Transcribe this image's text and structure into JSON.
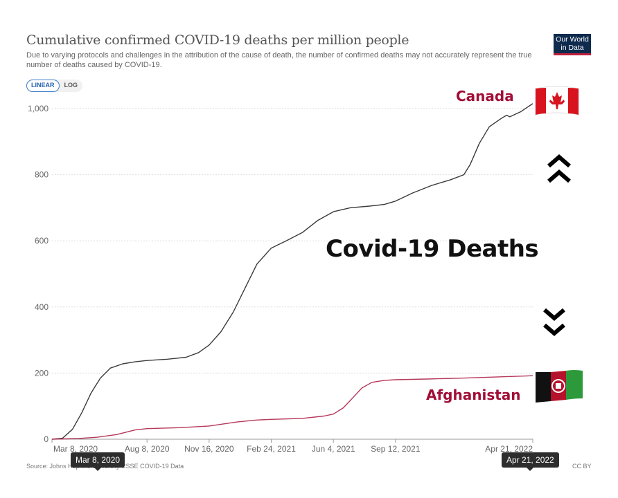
{
  "header": {
    "title": "Cumulative confirmed COVID-19 deaths per million people",
    "subtitle": "Due to varying protocols and challenges in the attribution of the cause of death, the number of confirmed deaths may not accurately represent the true number of deaths caused by COVID-19.",
    "logo_line1": "Our World",
    "logo_line2": "in Data",
    "scale_linear": "LINEAR",
    "scale_log": "LOG",
    "scale_selected": "LINEAR"
  },
  "footer": {
    "source": "Source: Johns Hopkins University CSSE COVID-19 Data",
    "license": "CC BY",
    "start_tooltip": "Mar 8, 2020",
    "end_tooltip": "Apr 21, 2022"
  },
  "overlay": {
    "headline": "Covid-19 Deaths",
    "label_canada": "Canada",
    "label_afghanistan": "Afghanistan",
    "label_color": "#a10e36",
    "icons": [
      "canada-flag-icon",
      "chevron-double-up-icon",
      "chevron-double-down-icon",
      "afghanistan-flag-icon"
    ]
  },
  "chart_data": {
    "type": "line",
    "title": "Cumulative confirmed COVID-19 deaths per million people",
    "xlim": [
      "2020-03-08",
      "2022-04-21"
    ],
    "ylim": [
      0,
      1000
    ],
    "x_ticks": [
      "Mar 8, 2020",
      "Aug 8, 2020",
      "Nov 16, 2020",
      "Feb 24, 2021",
      "Jun 4, 2021",
      "Sep 12, 2021",
      "Apr 21, 2022"
    ],
    "x_tick_dates": [
      "2020-03-08",
      "2020-08-08",
      "2020-11-16",
      "2021-02-24",
      "2021-06-04",
      "2021-09-12",
      "2022-04-21"
    ],
    "y_ticks": [
      0,
      200,
      400,
      600,
      800,
      1000
    ],
    "y_tick_labels": [
      "0",
      "200",
      "400",
      "600",
      "800",
      "1,000"
    ],
    "grid": "horizontal dotted",
    "series": [
      {
        "name": "Canada",
        "color": "#3a3a3a",
        "points": [
          [
            "2020-03-08",
            0
          ],
          [
            "2020-03-25",
            3
          ],
          [
            "2020-04-10",
            30
          ],
          [
            "2020-04-25",
            80
          ],
          [
            "2020-05-10",
            140
          ],
          [
            "2020-05-25",
            185
          ],
          [
            "2020-06-10",
            215
          ],
          [
            "2020-06-30",
            228
          ],
          [
            "2020-07-20",
            234
          ],
          [
            "2020-08-08",
            238
          ],
          [
            "2020-09-10",
            242
          ],
          [
            "2020-10-10",
            248
          ],
          [
            "2020-10-30",
            262
          ],
          [
            "2020-11-16",
            285
          ],
          [
            "2020-12-05",
            325
          ],
          [
            "2020-12-25",
            385
          ],
          [
            "2021-01-15",
            465
          ],
          [
            "2021-02-01",
            530
          ],
          [
            "2021-02-24",
            578
          ],
          [
            "2021-03-20",
            600
          ],
          [
            "2021-04-15",
            625
          ],
          [
            "2021-05-10",
            662
          ],
          [
            "2021-06-04",
            688
          ],
          [
            "2021-07-01",
            700
          ],
          [
            "2021-08-01",
            705
          ],
          [
            "2021-08-25",
            710
          ],
          [
            "2021-09-12",
            720
          ],
          [
            "2021-10-10",
            745
          ],
          [
            "2021-11-10",
            768
          ],
          [
            "2021-12-10",
            785
          ],
          [
            "2021-12-31",
            800
          ],
          [
            "2022-01-10",
            830
          ],
          [
            "2022-01-25",
            895
          ],
          [
            "2022-02-10",
            945
          ],
          [
            "2022-03-01",
            970
          ],
          [
            "2022-03-10",
            980
          ],
          [
            "2022-03-15",
            975
          ],
          [
            "2022-04-01",
            990
          ],
          [
            "2022-04-21",
            1015
          ]
        ]
      },
      {
        "name": "Afghanistan",
        "color": "#b5375a",
        "points": [
          [
            "2020-03-08",
            0
          ],
          [
            "2020-04-20",
            2
          ],
          [
            "2020-05-20",
            6
          ],
          [
            "2020-06-20",
            14
          ],
          [
            "2020-07-20",
            28
          ],
          [
            "2020-08-08",
            32
          ],
          [
            "2020-09-30",
            35
          ],
          [
            "2020-11-16",
            40
          ],
          [
            "2020-12-31",
            52
          ],
          [
            "2021-01-31",
            58
          ],
          [
            "2021-02-24",
            60
          ],
          [
            "2021-04-15",
            63
          ],
          [
            "2021-05-20",
            70
          ],
          [
            "2021-06-04",
            76
          ],
          [
            "2021-06-20",
            95
          ],
          [
            "2021-07-05",
            125
          ],
          [
            "2021-07-20",
            155
          ],
          [
            "2021-08-05",
            172
          ],
          [
            "2021-08-25",
            178
          ],
          [
            "2021-09-12",
            180
          ],
          [
            "2021-11-01",
            182
          ],
          [
            "2022-01-01",
            185
          ],
          [
            "2022-02-20",
            188
          ],
          [
            "2022-04-21",
            192
          ]
        ]
      }
    ]
  }
}
